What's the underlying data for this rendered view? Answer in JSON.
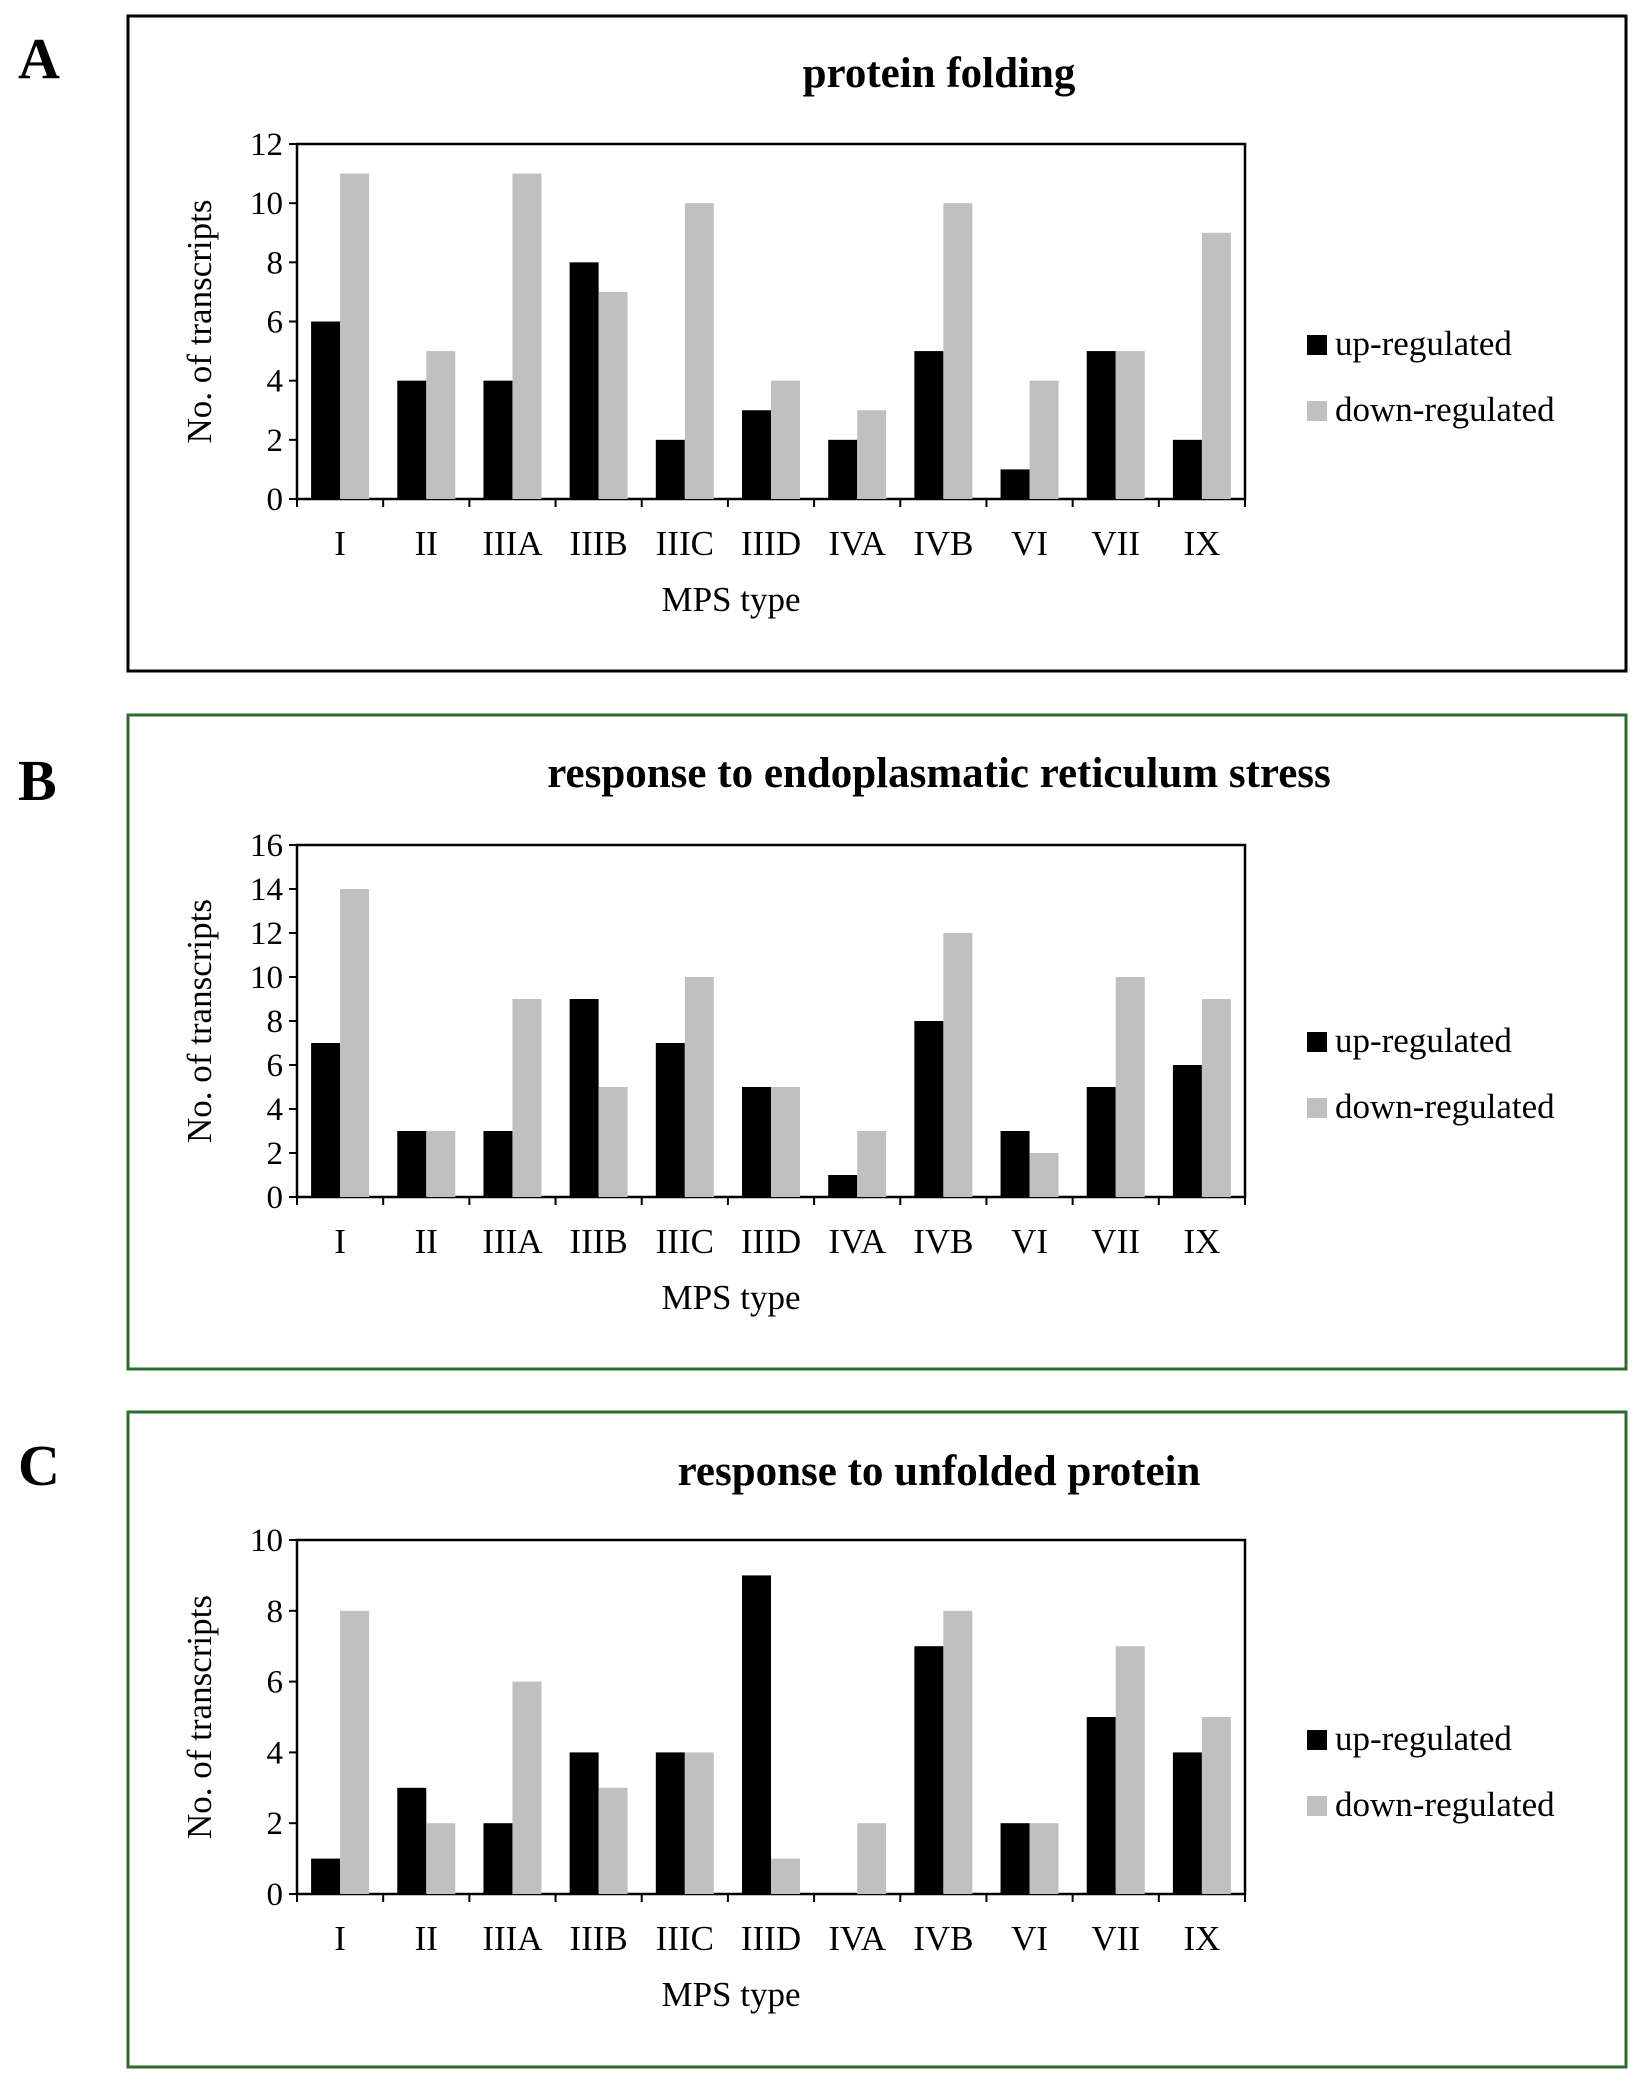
{
  "colors": {
    "up": "#000000",
    "down": "#c0c0c0",
    "frame_a": "#000000",
    "frame_bc": "#2e6b2e"
  },
  "chart_data": [
    {
      "panel": "A",
      "type": "bar",
      "title": "protein folding",
      "xlabel": "MPS type",
      "ylabel": "No. of transcripts",
      "ylim": [
        0,
        12
      ],
      "yticks": [
        0,
        2,
        4,
        6,
        8,
        10,
        12
      ],
      "categories": [
        "I",
        "II",
        "IIIA",
        "IIIB",
        "IIIC",
        "IIID",
        "IVA",
        "IVB",
        "VI",
        "VII",
        "IX"
      ],
      "series": [
        {
          "name": "up-regulated",
          "values": [
            6,
            4,
            4,
            8,
            2,
            3,
            2,
            5,
            1,
            5,
            2
          ]
        },
        {
          "name": "down-regulated",
          "values": [
            11,
            5,
            11,
            7,
            10,
            4,
            3,
            10,
            4,
            5,
            9
          ]
        }
      ],
      "legend": "right"
    },
    {
      "panel": "B",
      "type": "bar",
      "title": "response to endoplasmatic reticulum stress",
      "xlabel": "MPS type",
      "ylabel": "No. of transcripts",
      "ylim": [
        0,
        16
      ],
      "yticks": [
        0,
        2,
        4,
        6,
        8,
        10,
        12,
        14,
        16
      ],
      "categories": [
        "I",
        "II",
        "IIIA",
        "IIIB",
        "IIIC",
        "IIID",
        "IVA",
        "IVB",
        "VI",
        "VII",
        "IX"
      ],
      "series": [
        {
          "name": "up-regulated",
          "values": [
            7,
            3,
            3,
            9,
            7,
            5,
            1,
            8,
            3,
            5,
            6
          ]
        },
        {
          "name": "down-regulated",
          "values": [
            14,
            3,
            9,
            5,
            10,
            5,
            3,
            12,
            2,
            10,
            9
          ]
        }
      ],
      "legend": "right"
    },
    {
      "panel": "C",
      "type": "bar",
      "title": "response to unfolded protein",
      "xlabel": "MPS type",
      "ylabel": "No. of transcripts",
      "ylim": [
        0,
        10
      ],
      "yticks": [
        0,
        2,
        4,
        6,
        8,
        10
      ],
      "categories": [
        "I",
        "II",
        "IIIA",
        "IIIB",
        "IIIC",
        "IIID",
        "IVA",
        "IVB",
        "VI",
        "VII",
        "IX"
      ],
      "series": [
        {
          "name": "up-regulated",
          "values": [
            1,
            3,
            2,
            4,
            4,
            9,
            0,
            7,
            2,
            5,
            4
          ]
        },
        {
          "name": "down-regulated",
          "values": [
            8,
            2,
            6,
            3,
            4,
            1,
            2,
            8,
            2,
            7,
            5
          ]
        }
      ],
      "legend": "right"
    }
  ]
}
